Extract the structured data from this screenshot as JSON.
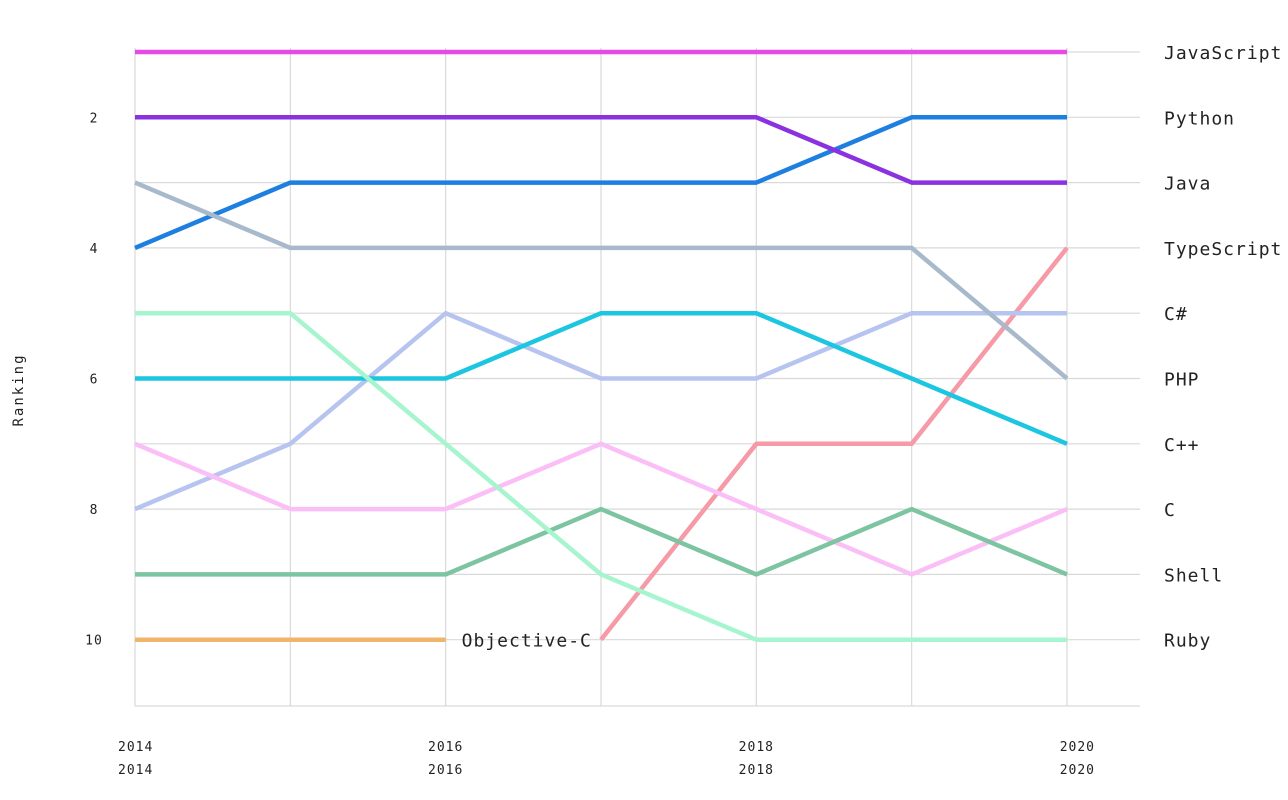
{
  "chart_data": {
    "type": "line",
    "ylabel": "Ranking",
    "xlabel": "",
    "x": [
      2014,
      2015,
      2016,
      2017,
      2018,
      2019,
      2020
    ],
    "xlim": [
      2014,
      2020
    ],
    "ylim": [
      11,
      1
    ],
    "y_reversed": true,
    "grid": true,
    "x_ticks_row1": [
      "2014",
      "2016",
      "2018",
      "2020"
    ],
    "x_ticks_row2": [
      "2014",
      "2016",
      "2018",
      "2020"
    ],
    "x_tick_values": [
      2014,
      2016,
      2018,
      2020
    ],
    "y_ticks": [
      2,
      4,
      6,
      8,
      10
    ],
    "legend": "right-end-labels",
    "series": [
      {
        "name": "JavaScript",
        "color": "#e54ce5",
        "values": [
          1,
          1,
          1,
          1,
          1,
          1,
          1
        ]
      },
      {
        "name": "Python",
        "color": "#1d7fe0",
        "values": [
          4,
          3,
          3,
          3,
          3,
          2,
          2
        ]
      },
      {
        "name": "Java",
        "color": "#8a32e0",
        "values": [
          2,
          2,
          2,
          2,
          2,
          3,
          3
        ]
      },
      {
        "name": "TypeScript",
        "color": "#f59aa6",
        "values": [
          null,
          null,
          null,
          10,
          7,
          7,
          4
        ]
      },
      {
        "name": "C#",
        "color": "#b7c4f0",
        "values": [
          8,
          7,
          5,
          6,
          6,
          5,
          5
        ]
      },
      {
        "name": "PHP",
        "color": "#a7b9cb",
        "values": [
          3,
          4,
          4,
          4,
          4,
          4,
          6
        ]
      },
      {
        "name": "C++",
        "color": "#1cc6e0",
        "values": [
          6,
          6,
          6,
          5,
          5,
          6,
          7
        ]
      },
      {
        "name": "C",
        "color": "#fbbff7",
        "values": [
          7,
          8,
          8,
          7,
          8,
          9,
          8
        ]
      },
      {
        "name": "Shell",
        "color": "#7dc4a1",
        "values": [
          9,
          9,
          9,
          8,
          9,
          8,
          9
        ]
      },
      {
        "name": "Ruby",
        "color": "#a6f5cf",
        "values": [
          5,
          5,
          7,
          9,
          10,
          10,
          10
        ]
      },
      {
        "name": "Objective-C",
        "color": "#f0b46a",
        "values": [
          10,
          10,
          10,
          null,
          null,
          null,
          null
        ],
        "inline_label": true
      }
    ],
    "end_labels": [
      "JavaScript",
      "Python",
      "Java",
      "TypeScript",
      "C#",
      "PHP",
      "C++",
      "C",
      "Shell",
      "Ruby"
    ]
  }
}
